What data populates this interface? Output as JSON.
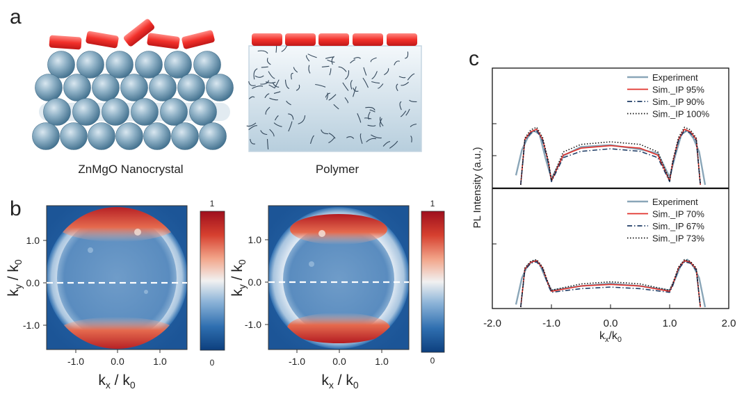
{
  "panel_a": {
    "letter": "a",
    "left_caption": "ZnMgO Nanocrystal",
    "right_caption": "Polymer"
  },
  "panel_b": {
    "letter": "b",
    "maps": [
      {
        "x_ticks": [
          "-1.0",
          "0.0",
          "1.0"
        ],
        "y_ticks": [
          "1.0",
          "0.0",
          "-1.0"
        ],
        "colorbar_max": "1",
        "colorbar_min": "0"
      },
      {
        "x_ticks": [
          "-1.0",
          "0.0",
          "1.0"
        ],
        "y_ticks": [
          "1.0",
          "0.0",
          "-1.0"
        ],
        "colorbar_max": "1",
        "colorbar_min": "0"
      }
    ],
    "colormap": [
      "#0d3f7e",
      "#2f6fb0",
      "#8db4d8",
      "#f1f1f1",
      "#f2a58a",
      "#d6402f",
      "#9e0f1d"
    ]
  },
  "panel_c": {
    "letter": "c",
    "ylabel": "PL Intensity (a.u.)",
    "x_ticks": [
      "-2.0",
      "-1.0",
      "0.0",
      "1.0",
      "2.0"
    ],
    "xlim": [
      -2.0,
      2.0
    ]
  },
  "chart_data": [
    {
      "type": "line",
      "panel": "c-top",
      "xlim": [
        -2.0,
        2.0
      ],
      "series": [
        {
          "name": "Experiment",
          "color": "#8aa6b8",
          "style": "solid",
          "x": [
            -1.6,
            -1.5,
            -1.4,
            -1.3,
            -1.2,
            -1.1,
            -1.0,
            -0.8,
            -0.5,
            0.0,
            0.5,
            0.8,
            1.0,
            1.1,
            1.2,
            1.3,
            1.4,
            1.5,
            1.6
          ],
          "y": [
            0.15,
            0.55,
            0.75,
            0.86,
            0.8,
            0.42,
            0.1,
            0.46,
            0.6,
            0.63,
            0.56,
            0.5,
            0.12,
            0.48,
            0.8,
            0.86,
            0.74,
            0.52,
            0.0
          ]
        },
        {
          "name": "Sim._IP 95%",
          "color": "#e0302a",
          "style": "solid",
          "x": [
            -1.52,
            -1.45,
            -1.35,
            -1.25,
            -1.15,
            -1.05,
            -1.0,
            -0.8,
            -0.5,
            0.0,
            0.5,
            0.8,
            1.0,
            1.05,
            1.15,
            1.25,
            1.35,
            1.45,
            1.52
          ],
          "y": [
            0.0,
            0.72,
            0.84,
            0.88,
            0.72,
            0.35,
            0.06,
            0.47,
            0.58,
            0.62,
            0.58,
            0.47,
            0.06,
            0.35,
            0.72,
            0.88,
            0.84,
            0.72,
            0.0
          ]
        },
        {
          "name": "Sim._IP 90%",
          "color": "#1f3d66",
          "style": "dash-dot",
          "x": [
            -1.52,
            -1.45,
            -1.35,
            -1.25,
            -1.15,
            -1.05,
            -1.0,
            -0.8,
            -0.5,
            0.0,
            0.5,
            0.8,
            1.0,
            1.05,
            1.15,
            1.25,
            1.35,
            1.45,
            1.52
          ],
          "y": [
            0.0,
            0.7,
            0.82,
            0.86,
            0.7,
            0.33,
            0.05,
            0.43,
            0.53,
            0.57,
            0.53,
            0.43,
            0.05,
            0.33,
            0.7,
            0.86,
            0.82,
            0.7,
            0.0
          ]
        },
        {
          "name": "Sim._IP 100%",
          "color": "#111111",
          "style": "dotted",
          "x": [
            -1.52,
            -1.45,
            -1.35,
            -1.25,
            -1.15,
            -1.05,
            -1.0,
            -0.8,
            -0.5,
            0.0,
            0.5,
            0.8,
            1.0,
            1.05,
            1.15,
            1.25,
            1.35,
            1.45,
            1.52
          ],
          "y": [
            0.0,
            0.74,
            0.87,
            0.91,
            0.75,
            0.37,
            0.07,
            0.52,
            0.64,
            0.68,
            0.64,
            0.52,
            0.07,
            0.37,
            0.75,
            0.91,
            0.87,
            0.74,
            0.0
          ]
        }
      ]
    },
    {
      "type": "line",
      "panel": "c-bottom",
      "xlim": [
        -2.0,
        2.0
      ],
      "series": [
        {
          "name": "Experiment",
          "color": "#8aa6b8",
          "style": "solid",
          "x": [
            -1.6,
            -1.5,
            -1.4,
            -1.3,
            -1.2,
            -1.1,
            -1.0,
            -0.5,
            0.0,
            0.5,
            1.0,
            1.1,
            1.2,
            1.3,
            1.4,
            1.5,
            1.6
          ],
          "y": [
            0.05,
            0.55,
            0.8,
            0.88,
            0.82,
            0.55,
            0.32,
            0.4,
            0.45,
            0.4,
            0.32,
            0.55,
            0.82,
            0.9,
            0.78,
            0.55,
            0.0
          ]
        },
        {
          "name": "Sim._IP 70%",
          "color": "#e0302a",
          "style": "solid",
          "x": [
            -1.52,
            -1.45,
            -1.35,
            -1.25,
            -1.15,
            -1.05,
            -1.0,
            -0.5,
            0.0,
            0.5,
            1.0,
            1.05,
            1.15,
            1.25,
            1.35,
            1.45,
            1.52
          ],
          "y": [
            0.0,
            0.72,
            0.85,
            0.88,
            0.74,
            0.42,
            0.3,
            0.4,
            0.43,
            0.4,
            0.3,
            0.42,
            0.74,
            0.88,
            0.85,
            0.72,
            0.0
          ]
        },
        {
          "name": "Sim._IP 67%",
          "color": "#1f3d66",
          "style": "dash-dot",
          "x": [
            -1.52,
            -1.45,
            -1.35,
            -1.25,
            -1.15,
            -1.05,
            -1.0,
            -0.5,
            0.0,
            0.5,
            1.0,
            1.05,
            1.15,
            1.25,
            1.35,
            1.45,
            1.52
          ],
          "y": [
            0.0,
            0.7,
            0.83,
            0.86,
            0.72,
            0.4,
            0.28,
            0.35,
            0.38,
            0.35,
            0.28,
            0.4,
            0.72,
            0.86,
            0.83,
            0.7,
            0.0
          ]
        },
        {
          "name": "Sim._IP 73%",
          "color": "#111111",
          "style": "dotted",
          "x": [
            -1.52,
            -1.45,
            -1.35,
            -1.25,
            -1.15,
            -1.05,
            -1.0,
            -0.5,
            0.0,
            0.5,
            1.0,
            1.05,
            1.15,
            1.25,
            1.35,
            1.45,
            1.52
          ],
          "y": [
            0.0,
            0.74,
            0.87,
            0.9,
            0.76,
            0.44,
            0.32,
            0.44,
            0.48,
            0.44,
            0.32,
            0.44,
            0.76,
            0.9,
            0.87,
            0.74,
            0.0
          ]
        }
      ]
    }
  ]
}
